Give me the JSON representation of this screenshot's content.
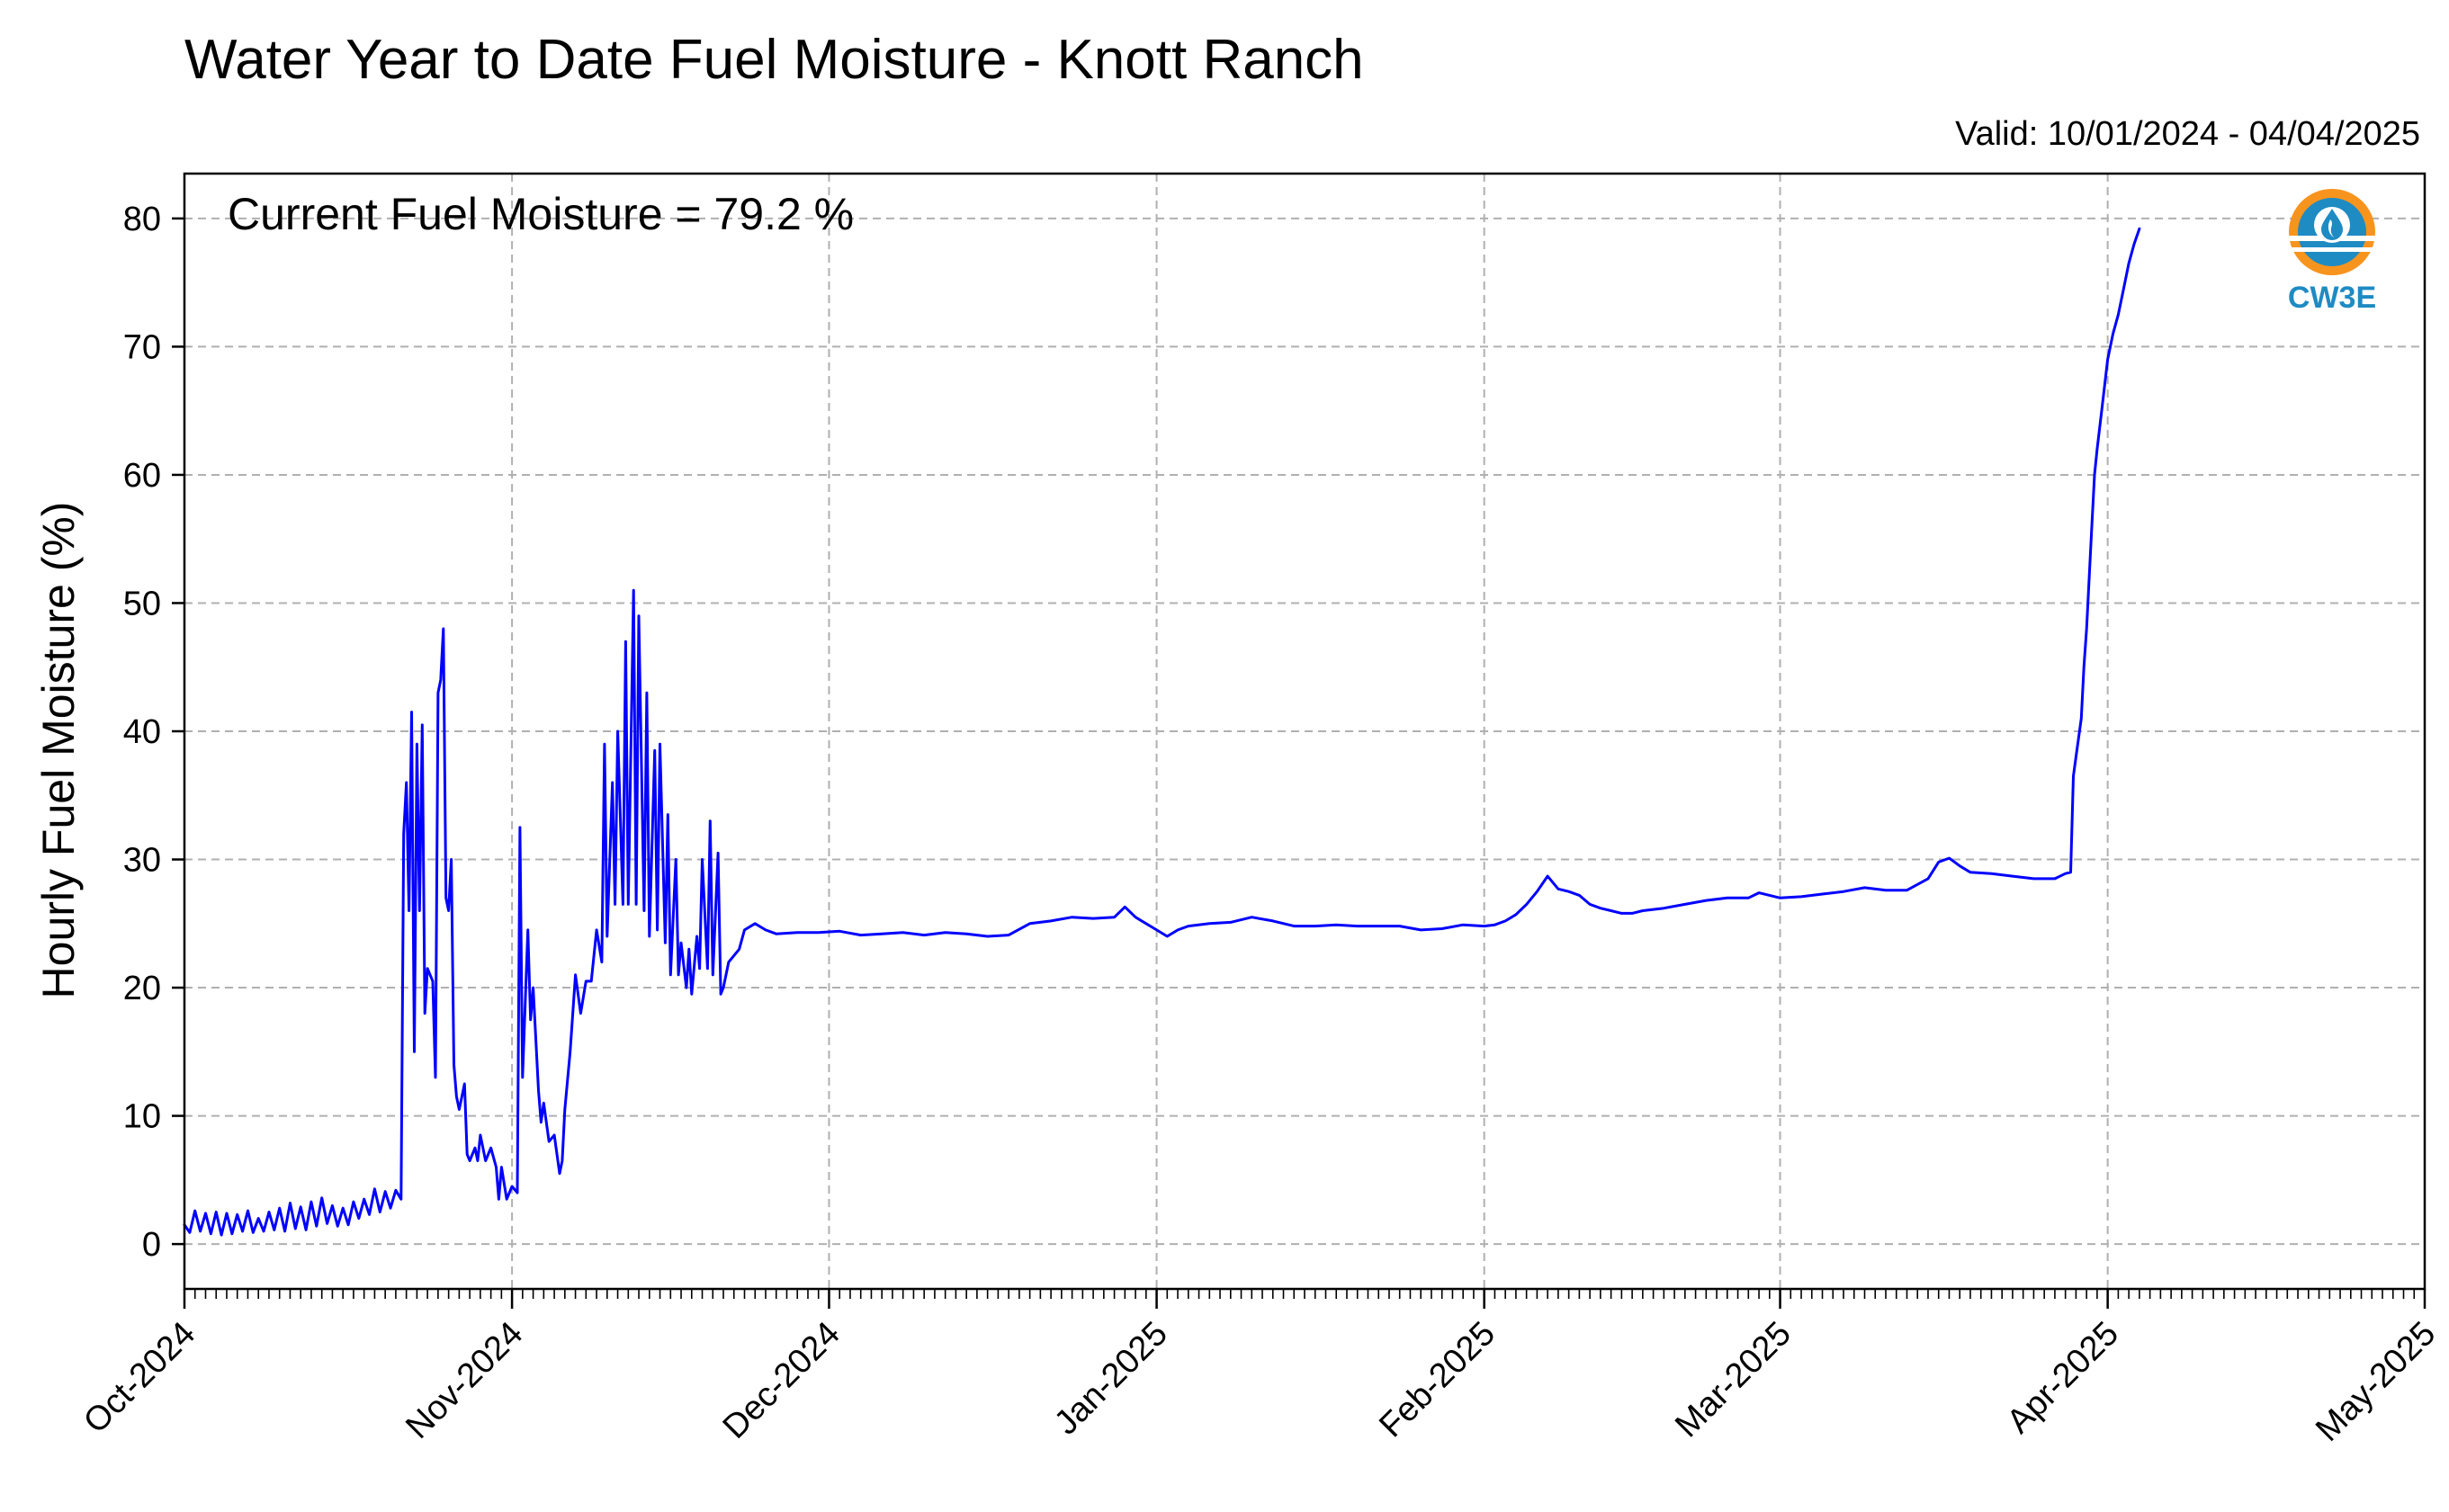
{
  "chart_data": {
    "type": "line",
    "title": "Water Year to Date Fuel Moisture - Knott Ranch",
    "subtitle": "Valid: 10/01/2024 - 04/04/2025",
    "annotation": "Current Fuel Moisture = 79.2 %",
    "ylabel": "Hourly Fuel Moisture (%)",
    "xlabel": "",
    "xlim": [
      "2024-10-01",
      "2025-05-01"
    ],
    "ylim": [
      -3.5,
      83.5
    ],
    "yticks": [
      0,
      10,
      20,
      30,
      40,
      50,
      60,
      70,
      80
    ],
    "xticks": [
      {
        "date": "2024-10-01",
        "label": "Oct-2024"
      },
      {
        "date": "2024-11-01",
        "label": "Nov-2024"
      },
      {
        "date": "2024-12-01",
        "label": "Dec-2024"
      },
      {
        "date": "2025-01-01",
        "label": "Jan-2025"
      },
      {
        "date": "2025-02-01",
        "label": "Feb-2025"
      },
      {
        "date": "2025-03-01",
        "label": "Mar-2025"
      },
      {
        "date": "2025-04-01",
        "label": "Apr-2025"
      },
      {
        "date": "2025-05-01",
        "label": "May-2025"
      }
    ],
    "grid": true,
    "colors": {
      "line": "#0000ff",
      "grid": "#b0b0b0",
      "logo_orange": "#f7941d",
      "logo_blue": "#1e8bc3"
    },
    "logo_text": "CW3E",
    "series": [
      {
        "values": [
          [
            "2024-10-01",
            1.5
          ],
          [
            "2024-10-01T12",
            0.9
          ],
          [
            "2024-10-02",
            2.6
          ],
          [
            "2024-10-02T12",
            1.0
          ],
          [
            "2024-10-03",
            2.4
          ],
          [
            "2024-10-03T12",
            0.8
          ],
          [
            "2024-10-04",
            2.5
          ],
          [
            "2024-10-04T12",
            0.7
          ],
          [
            "2024-10-05",
            2.4
          ],
          [
            "2024-10-05T12",
            0.8
          ],
          [
            "2024-10-06",
            2.3
          ],
          [
            "2024-10-06T12",
            1.0
          ],
          [
            "2024-10-07",
            2.6
          ],
          [
            "2024-10-07T12",
            0.9
          ],
          [
            "2024-10-08",
            2.0
          ],
          [
            "2024-10-08T12",
            1.0
          ],
          [
            "2024-10-09",
            2.5
          ],
          [
            "2024-10-09T12",
            1.1
          ],
          [
            "2024-10-10",
            2.8
          ],
          [
            "2024-10-10T12",
            1.0
          ],
          [
            "2024-10-11",
            3.2
          ],
          [
            "2024-10-11T12",
            1.2
          ],
          [
            "2024-10-12",
            2.9
          ],
          [
            "2024-10-12T12",
            1.1
          ],
          [
            "2024-10-13",
            3.3
          ],
          [
            "2024-10-13T12",
            1.4
          ],
          [
            "2024-10-14",
            3.6
          ],
          [
            "2024-10-14T12",
            1.6
          ],
          [
            "2024-10-15",
            3.0
          ],
          [
            "2024-10-15T12",
            1.4
          ],
          [
            "2024-10-16",
            2.8
          ],
          [
            "2024-10-16T12",
            1.5
          ],
          [
            "2024-10-17",
            3.3
          ],
          [
            "2024-10-17T12",
            2.0
          ],
          [
            "2024-10-18",
            3.5
          ],
          [
            "2024-10-18T12",
            2.3
          ],
          [
            "2024-10-19",
            4.3
          ],
          [
            "2024-10-19T12",
            2.5
          ],
          [
            "2024-10-20",
            4.1
          ],
          [
            "2024-10-20T12",
            2.8
          ],
          [
            "2024-10-21",
            4.2
          ],
          [
            "2024-10-21T12",
            3.5
          ],
          [
            "2024-10-21T18",
            32.0
          ],
          [
            "2024-10-22",
            36.0
          ],
          [
            "2024-10-22T06",
            26.0
          ],
          [
            "2024-10-22T12",
            41.5
          ],
          [
            "2024-10-22T18",
            15.0
          ],
          [
            "2024-10-23",
            39.0
          ],
          [
            "2024-10-23T06",
            26.0
          ],
          [
            "2024-10-23T12",
            40.5
          ],
          [
            "2024-10-23T18",
            18.0
          ],
          [
            "2024-10-24",
            21.5
          ],
          [
            "2024-10-24T12",
            20.5
          ],
          [
            "2024-10-24T18",
            13.0
          ],
          [
            "2024-10-25",
            43.0
          ],
          [
            "2024-10-25T06",
            44.0
          ],
          [
            "2024-10-25T12",
            48.0
          ],
          [
            "2024-10-25T18",
            27.0
          ],
          [
            "2024-10-26",
            26.0
          ],
          [
            "2024-10-26T06",
            30.0
          ],
          [
            "2024-10-26T12",
            14.0
          ],
          [
            "2024-10-26T18",
            11.5
          ],
          [
            "2024-10-27",
            10.5
          ],
          [
            "2024-10-27T12",
            12.5
          ],
          [
            "2024-10-27T18",
            7.0
          ],
          [
            "2024-10-28",
            6.5
          ],
          [
            "2024-10-28T12",
            7.5
          ],
          [
            "2024-10-28T18",
            6.5
          ],
          [
            "2024-10-29",
            8.5
          ],
          [
            "2024-10-29T12",
            6.5
          ],
          [
            "2024-10-30",
            7.5
          ],
          [
            "2024-10-30T12",
            6.0
          ],
          [
            "2024-10-30T18",
            3.5
          ],
          [
            "2024-10-31",
            6.0
          ],
          [
            "2024-10-31T12",
            3.5
          ],
          [
            "2024-11-01",
            4.5
          ],
          [
            "2024-11-01T12",
            4.0
          ],
          [
            "2024-11-01T18",
            32.5
          ],
          [
            "2024-11-02",
            13.0
          ],
          [
            "2024-11-02T12",
            24.5
          ],
          [
            "2024-11-02T18",
            17.5
          ],
          [
            "2024-11-03",
            20.0
          ],
          [
            "2024-11-03T12",
            12.0
          ],
          [
            "2024-11-03T18",
            9.5
          ],
          [
            "2024-11-04",
            11.0
          ],
          [
            "2024-11-04T12",
            8.0
          ],
          [
            "2024-11-05",
            8.5
          ],
          [
            "2024-11-05T12",
            5.5
          ],
          [
            "2024-11-05T18",
            6.5
          ],
          [
            "2024-11-06",
            10.5
          ],
          [
            "2024-11-06T12",
            15.0
          ],
          [
            "2024-11-07",
            21.0
          ],
          [
            "2024-11-07T12",
            18.0
          ],
          [
            "2024-11-08",
            20.5
          ],
          [
            "2024-11-08T12",
            20.5
          ],
          [
            "2024-11-09",
            24.5
          ],
          [
            "2024-11-09T12",
            22.0
          ],
          [
            "2024-11-09T18",
            39.0
          ],
          [
            "2024-11-10",
            24.0
          ],
          [
            "2024-11-10T12",
            36.0
          ],
          [
            "2024-11-10T18",
            26.5
          ],
          [
            "2024-11-11",
            40.0
          ],
          [
            "2024-11-11T12",
            26.5
          ],
          [
            "2024-11-11T18",
            47.0
          ],
          [
            "2024-11-12",
            26.5
          ],
          [
            "2024-11-12T12",
            51.0
          ],
          [
            "2024-11-12T18",
            26.5
          ],
          [
            "2024-11-13",
            49.0
          ],
          [
            "2024-11-13T12",
            26.0
          ],
          [
            "2024-11-13T18",
            43.0
          ],
          [
            "2024-11-14",
            24.0
          ],
          [
            "2024-11-14T12",
            38.5
          ],
          [
            "2024-11-14T18",
            24.5
          ],
          [
            "2024-11-15",
            39.0
          ],
          [
            "2024-11-15T12",
            23.5
          ],
          [
            "2024-11-15T18",
            33.5
          ],
          [
            "2024-11-16",
            21.0
          ],
          [
            "2024-11-16T12",
            30.0
          ],
          [
            "2024-11-16T18",
            21.0
          ],
          [
            "2024-11-17",
            23.5
          ],
          [
            "2024-11-17T12",
            20.0
          ],
          [
            "2024-11-17T18",
            23.0
          ],
          [
            "2024-11-18",
            19.5
          ],
          [
            "2024-11-18T12",
            24.0
          ],
          [
            "2024-11-18T18",
            21.5
          ],
          [
            "2024-11-19",
            30.0
          ],
          [
            "2024-11-19T12",
            21.5
          ],
          [
            "2024-11-19T18",
            33.0
          ],
          [
            "2024-11-20",
            21.0
          ],
          [
            "2024-11-20T12",
            30.5
          ],
          [
            "2024-11-20T18",
            19.5
          ],
          [
            "2024-11-21",
            20.0
          ],
          [
            "2024-11-21T12",
            22.0
          ],
          [
            "2024-11-22",
            22.5
          ],
          [
            "2024-11-22T12",
            23.0
          ],
          [
            "2024-11-23",
            24.5
          ],
          [
            "2024-11-24",
            25.0
          ],
          [
            "2024-11-25",
            24.5
          ],
          [
            "2024-11-26",
            24.2
          ],
          [
            "2024-11-28",
            24.3
          ],
          [
            "2024-11-30",
            24.3
          ],
          [
            "2024-12-02",
            24.4
          ],
          [
            "2024-12-04",
            24.1
          ],
          [
            "2024-12-06",
            24.2
          ],
          [
            "2024-12-08",
            24.3
          ],
          [
            "2024-12-10",
            24.1
          ],
          [
            "2024-12-12",
            24.3
          ],
          [
            "2024-12-14",
            24.2
          ],
          [
            "2024-12-16",
            24.0
          ],
          [
            "2024-12-18",
            24.1
          ],
          [
            "2024-12-20",
            25.0
          ],
          [
            "2024-12-22",
            25.2
          ],
          [
            "2024-12-24",
            25.5
          ],
          [
            "2024-12-26",
            25.4
          ],
          [
            "2024-12-28",
            25.5
          ],
          [
            "2024-12-29",
            26.3
          ],
          [
            "2024-12-30",
            25.5
          ],
          [
            "2025-01-01",
            24.5
          ],
          [
            "2025-01-02",
            24.0
          ],
          [
            "2025-01-03",
            24.5
          ],
          [
            "2025-01-04",
            24.8
          ],
          [
            "2025-01-06",
            25.0
          ],
          [
            "2025-01-08",
            25.1
          ],
          [
            "2025-01-10",
            25.5
          ],
          [
            "2025-01-12",
            25.2
          ],
          [
            "2025-01-14",
            24.8
          ],
          [
            "2025-01-16",
            24.8
          ],
          [
            "2025-01-18",
            24.9
          ],
          [
            "2025-01-20",
            24.8
          ],
          [
            "2025-01-22",
            24.8
          ],
          [
            "2025-01-24",
            24.8
          ],
          [
            "2025-01-26",
            24.5
          ],
          [
            "2025-01-28",
            24.6
          ],
          [
            "2025-01-30",
            24.9
          ],
          [
            "2025-02-01",
            24.8
          ],
          [
            "2025-02-02",
            24.9
          ],
          [
            "2025-02-03",
            25.2
          ],
          [
            "2025-02-04",
            25.7
          ],
          [
            "2025-02-05",
            26.5
          ],
          [
            "2025-02-06",
            27.5
          ],
          [
            "2025-02-07",
            28.7
          ],
          [
            "2025-02-08",
            27.7
          ],
          [
            "2025-02-09",
            27.5
          ],
          [
            "2025-02-10",
            27.2
          ],
          [
            "2025-02-11",
            26.5
          ],
          [
            "2025-02-12",
            26.2
          ],
          [
            "2025-02-13",
            26.0
          ],
          [
            "2025-02-14",
            25.8
          ],
          [
            "2025-02-15",
            25.8
          ],
          [
            "2025-02-16",
            26.0
          ],
          [
            "2025-02-18",
            26.2
          ],
          [
            "2025-02-20",
            26.5
          ],
          [
            "2025-02-22",
            26.8
          ],
          [
            "2025-02-24",
            27.0
          ],
          [
            "2025-02-26",
            27.0
          ],
          [
            "2025-02-27",
            27.4
          ],
          [
            "2025-02-28",
            27.2
          ],
          [
            "2025-03-01",
            27.0
          ],
          [
            "2025-03-03",
            27.1
          ],
          [
            "2025-03-05",
            27.3
          ],
          [
            "2025-03-07",
            27.5
          ],
          [
            "2025-03-09",
            27.8
          ],
          [
            "2025-03-11",
            27.6
          ],
          [
            "2025-03-13",
            27.6
          ],
          [
            "2025-03-15",
            28.5
          ],
          [
            "2025-03-16",
            29.8
          ],
          [
            "2025-03-17",
            30.1
          ],
          [
            "2025-03-18",
            29.5
          ],
          [
            "2025-03-19",
            29.0
          ],
          [
            "2025-03-21",
            28.9
          ],
          [
            "2025-03-23",
            28.7
          ],
          [
            "2025-03-25",
            28.5
          ],
          [
            "2025-03-27",
            28.5
          ],
          [
            "2025-03-28",
            28.9
          ],
          [
            "2025-03-28T12",
            29.0
          ],
          [
            "2025-03-28T18",
            36.5
          ],
          [
            "2025-03-29",
            38.0
          ],
          [
            "2025-03-29T12",
            41.0
          ],
          [
            "2025-03-29T18",
            45.0
          ],
          [
            "2025-03-30",
            48.0
          ],
          [
            "2025-03-30T06",
            52.0
          ],
          [
            "2025-03-30T12",
            56.0
          ],
          [
            "2025-03-30T18",
            60.0
          ],
          [
            "2025-03-31",
            62.0
          ],
          [
            "2025-03-31T12",
            65.5
          ],
          [
            "2025-04-01",
            69.0
          ],
          [
            "2025-04-01T12",
            71.0
          ],
          [
            "2025-04-02",
            72.5
          ],
          [
            "2025-04-02T12",
            74.5
          ],
          [
            "2025-04-03",
            76.5
          ],
          [
            "2025-04-03T12",
            78.0
          ],
          [
            "2025-04-04",
            79.2
          ]
        ]
      }
    ]
  }
}
